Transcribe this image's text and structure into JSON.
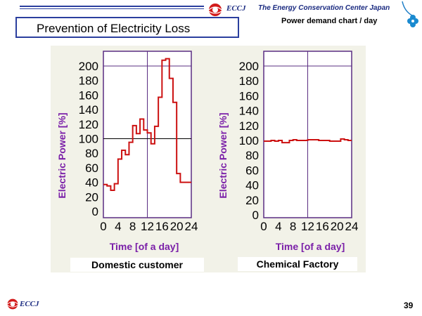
{
  "header": {
    "logo_text": "ECCJ",
    "organization": "The Energy Conservation Center Japan",
    "subtitle": "Power demand chart / day",
    "title": "Prevention of Electricity Loss"
  },
  "footer": {
    "logo_text": "ECCJ",
    "page_number": "39"
  },
  "colors": {
    "brand_blue": "#2b3f9e",
    "axis_title": "#7a1fa8",
    "frame": "#5a2d82",
    "series_line": "#cc1111"
  },
  "chart_data": [
    {
      "type": "line",
      "caption": "Domestic  customer",
      "xlabel": "Time [of a day]",
      "ylabel": "Electric Power [%]",
      "xlim": [
        0,
        24
      ],
      "ylim": [
        0,
        200
      ],
      "x_ticks": [
        "0",
        "4",
        "8",
        "12",
        "16",
        "20",
        "24"
      ],
      "y_ticks": [
        "200",
        "180",
        "160",
        "140",
        "120",
        "100",
        "80",
        "60",
        "40",
        "20",
        "0"
      ],
      "reference_lines": [
        100,
        200
      ],
      "noon_line": 12,
      "step": true,
      "x": [
        0,
        1,
        2,
        3,
        4,
        5,
        6,
        7,
        8,
        9,
        10,
        11,
        12,
        13,
        14,
        15,
        16,
        17,
        18,
        19,
        20,
        21,
        22,
        23
      ],
      "values": [
        37,
        35,
        29,
        38,
        72,
        84,
        78,
        95,
        118,
        107,
        127,
        112,
        108,
        93,
        117,
        157,
        208,
        210,
        183,
        150,
        52,
        40,
        40,
        40
      ]
    },
    {
      "type": "line",
      "caption": "Chemical  Factory",
      "xlabel": "Time [of a day]",
      "ylabel": "Electric Power [%]",
      "xlim": [
        0,
        24
      ],
      "ylim": [
        0,
        200
      ],
      "x_ticks": [
        "0",
        "4",
        "8",
        "12",
        "16",
        "20",
        "24"
      ],
      "y_ticks": [
        "200",
        "180",
        "160",
        "140",
        "120",
        "100",
        "80",
        "60",
        "40",
        "20",
        "0"
      ],
      "reference_lines": [
        200
      ],
      "noon_line": 12,
      "step": true,
      "x": [
        0,
        1,
        2,
        3,
        4,
        5,
        6,
        7,
        8,
        9,
        10,
        11,
        12,
        13,
        14,
        15,
        16,
        17,
        18,
        19,
        20,
        21,
        22,
        23
      ],
      "values": [
        99,
        99,
        100,
        99,
        100,
        97,
        97,
        100,
        101,
        100,
        100,
        100,
        101,
        101,
        101,
        100,
        100,
        100,
        99,
        99,
        99,
        102,
        101,
        100
      ]
    }
  ]
}
